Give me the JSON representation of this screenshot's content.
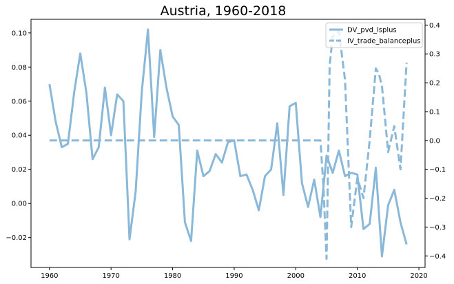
{
  "chart_data": {
    "type": "line",
    "title": "Austria, 1960-2018",
    "xlabel": "",
    "ylabel": "",
    "xlim": [
      1957,
      2021
    ],
    "ylim_left": [
      -0.0375,
      0.108
    ],
    "ylim_right": [
      -0.44,
      0.42
    ],
    "x_ticks": [
      1960,
      1970,
      1980,
      1990,
      2000,
      2010,
      2020
    ],
    "y_ticks_left": [
      -0.02,
      0.0,
      0.02,
      0.04,
      0.06,
      0.08,
      0.1
    ],
    "y_ticks_left_labels": [
      "−0.02",
      "0.00",
      "0.02",
      "0.04",
      "0.06",
      "0.08",
      "0.10"
    ],
    "y_ticks_right": [
      -0.4,
      -0.3,
      -0.2,
      -0.1,
      0.0,
      0.1,
      0.2,
      0.3,
      0.4
    ],
    "y_ticks_right_labels": [
      "−0.4",
      "−0.3",
      "−0.2",
      "−0.1",
      "0.0",
      "0.1",
      "0.2",
      "0.3",
      "0.4"
    ],
    "grid": false,
    "legend_position": "top-right",
    "series": [
      {
        "name": "DV_pvd_lsplus",
        "axis": "left",
        "style": "solid",
        "color": "#8ab8d8",
        "x": [
          1960,
          1961,
          1962,
          1963,
          1964,
          1965,
          1966,
          1967,
          1968,
          1969,
          1970,
          1971,
          1972,
          1973,
          1974,
          1975,
          1976,
          1977,
          1978,
          1979,
          1980,
          1981,
          1982,
          1983,
          1984,
          1985,
          1986,
          1987,
          1988,
          1989,
          1990,
          1991,
          1992,
          1993,
          1994,
          1995,
          1996,
          1997,
          1998,
          1999,
          2000,
          2001,
          2002,
          2003,
          2004,
          2005,
          2006,
          2007,
          2008,
          2009,
          2010,
          2011,
          2012,
          2013,
          2014,
          2015,
          2016,
          2017,
          2018
        ],
        "values": [
          0.07,
          0.048,
          0.033,
          0.035,
          0.065,
          0.088,
          0.065,
          0.026,
          0.033,
          0.068,
          0.04,
          0.064,
          0.06,
          -0.021,
          0.007,
          0.066,
          0.102,
          0.039,
          0.09,
          0.068,
          0.051,
          0.046,
          -0.011,
          -0.022,
          0.031,
          0.016,
          0.019,
          0.029,
          0.024,
          0.036,
          0.037,
          0.016,
          0.017,
          0.008,
          -0.004,
          0.016,
          0.02,
          0.047,
          0.005,
          0.057,
          0.059,
          0.012,
          -0.002,
          0.014,
          -0.008,
          0.028,
          0.018,
          0.031,
          0.016,
          0.018,
          0.017,
          -0.015,
          -0.012,
          0.021,
          -0.031,
          -0.001,
          0.008,
          -0.011,
          -0.024
        ]
      },
      {
        "name": "IV_trade_balanceplus",
        "axis": "right",
        "style": "dashed",
        "color": "#8ab8d8",
        "x": [
          1960,
          1961,
          1962,
          1963,
          1964,
          1965,
          1966,
          1967,
          1968,
          1969,
          1970,
          1971,
          1972,
          1973,
          1974,
          1975,
          1976,
          1977,
          1978,
          1979,
          1980,
          1981,
          1982,
          1983,
          1984,
          1985,
          1986,
          1987,
          1988,
          1989,
          1990,
          1991,
          1992,
          1993,
          1994,
          1995,
          1996,
          1997,
          1998,
          1999,
          2000,
          2001,
          2002,
          2003,
          2004,
          2004.5,
          2005,
          2005.5,
          2006,
          2007,
          2008,
          2009,
          2010,
          2011,
          2012,
          2013,
          2013.5,
          2014,
          2015,
          2016,
          2017,
          2018
        ],
        "values": [
          0.0,
          0.0,
          0.0,
          0.0,
          0.0,
          0.0,
          0.0,
          0.0,
          0.0,
          0.0,
          0.0,
          0.0,
          0.0,
          0.0,
          0.0,
          0.0,
          0.0,
          0.0,
          0.0,
          0.0,
          0.0,
          0.0,
          0.0,
          0.0,
          0.0,
          0.0,
          0.0,
          0.0,
          0.0,
          0.0,
          0.0,
          0.0,
          0.0,
          0.0,
          0.0,
          0.0,
          0.0,
          0.0,
          0.0,
          0.0,
          0.0,
          0.0,
          0.0,
          0.0,
          0.0,
          -0.16,
          -0.41,
          0.26,
          0.36,
          0.38,
          0.21,
          -0.3,
          -0.13,
          -0.2,
          0.0,
          0.25,
          0.23,
          0.19,
          -0.04,
          0.05,
          -0.1,
          0.27
        ]
      }
    ]
  },
  "legend": {
    "items": [
      {
        "label": "DV_pvd_lsplus",
        "style": "solid"
      },
      {
        "label": "IV_trade_balanceplus",
        "style": "dashed"
      }
    ]
  }
}
